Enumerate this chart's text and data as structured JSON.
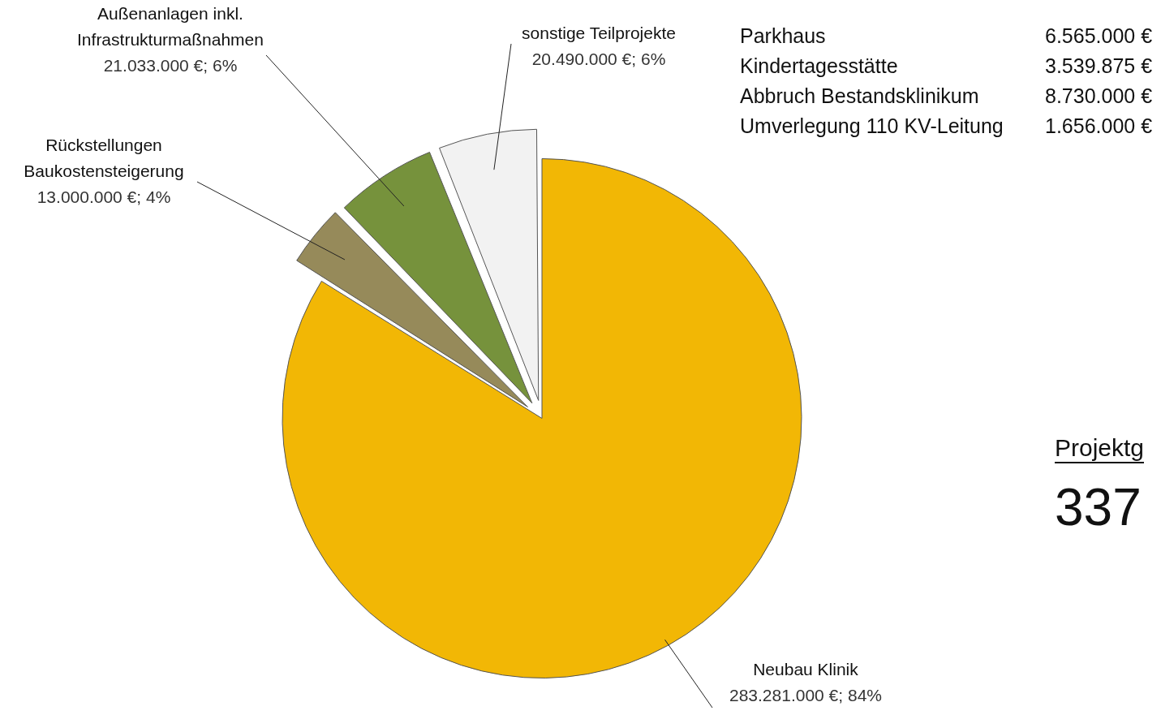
{
  "chart_data": {
    "type": "pie",
    "categories": [
      "Neubau Klinik",
      "Rückstellungen Baukostensteigerung",
      "Außenanlagen inkl. Infrastrukturmaßnahmen",
      "sonstige Teilprojekte"
    ],
    "values": [
      283281000,
      13000000,
      21033000,
      20490000
    ],
    "value_labels": [
      "283.281.000 €; 84%",
      "13.000.000 €; 4%",
      "21.033.000 €; 6%",
      "20.490.000 €; 6%"
    ],
    "colors": [
      "#f2b705",
      "#968a5a",
      "#76923c",
      "#f2f2f2"
    ],
    "legend": false,
    "annotations": [
      "Parkhaus",
      "6.565.000 €",
      "Kindertagesstätte",
      "3.539.875 €",
      "Abbruch Bestandsklinikum",
      "8.730.000 €",
      "Umverlegung 110 KV-Leitung",
      "1.656.000 €",
      "Projektg",
      "337"
    ]
  }
}
